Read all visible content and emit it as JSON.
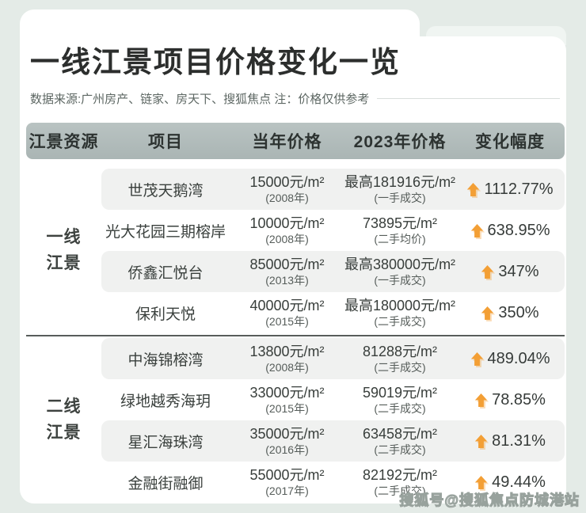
{
  "header": {
    "title": "一线江景项目价格变化一览",
    "subtitle": "数据来源:广州房产、链家、房天下、搜狐焦点  注：价格仅供参考"
  },
  "watermark": "搜狐号@搜狐焦点防城港站",
  "colors": {
    "background": "#e4ebe7",
    "card": "#ffffff",
    "header_band": "#aab5b4",
    "row_stripe": "#f0f1f0",
    "accent_orange": "#f39f35",
    "divider": "#585d5b"
  },
  "table": {
    "columns": [
      "江景资源",
      "项目",
      "当年价格",
      "2023年价格",
      "变化幅度"
    ],
    "groups": [
      {
        "label_lines": [
          "一线",
          "江景"
        ],
        "rows": [
          {
            "project": "世茂天鹅湾",
            "orig_price": "15000元/m²",
            "orig_year": "(2008年)",
            "price_2023": "最高181916元/m²",
            "deal_type": "(一手成交)",
            "change": "1112.77%"
          },
          {
            "project": "光大花园三期榕岸",
            "orig_price": "10000元/m²",
            "orig_year": "(2008年)",
            "price_2023": "73895元/m²",
            "deal_type": "(二手均价)",
            "change": "638.95%"
          },
          {
            "project": "侨鑫汇悦台",
            "orig_price": "85000元/m²",
            "orig_year": "(2013年)",
            "price_2023": "最高380000元/m²",
            "deal_type": "(一手成交)",
            "change": "347%"
          },
          {
            "project": "保利天悦",
            "orig_price": "40000元/m²",
            "orig_year": "(2015年)",
            "price_2023": "最高180000元/m²",
            "deal_type": "(二手成交)",
            "change": "350%"
          }
        ]
      },
      {
        "label_lines": [
          "二线",
          "江景"
        ],
        "rows": [
          {
            "project": "中海锦榕湾",
            "orig_price": "13800元/m²",
            "orig_year": "(2008年)",
            "price_2023": "81288元/m²",
            "deal_type": "(二手成交)",
            "change": "489.04%"
          },
          {
            "project": "绿地越秀海玥",
            "orig_price": "33000元/m²",
            "orig_year": "(2015年)",
            "price_2023": "59019元/m²",
            "deal_type": "(二手成交)",
            "change": "78.85%"
          },
          {
            "project": "星汇海珠湾",
            "orig_price": "35000元/m²",
            "orig_year": "(2016年)",
            "price_2023": "63458元/m²",
            "deal_type": "(二手成交)",
            "change": "81.31%"
          },
          {
            "project": "金融街融御",
            "orig_price": "55000元/m²",
            "orig_year": "(2017年)",
            "price_2023": "82192元/m²",
            "deal_type": "(二手成交)",
            "change": "49.44%"
          }
        ]
      }
    ]
  },
  "chart_data": {
    "type": "table",
    "title": "一线江景项目价格变化一览",
    "subtitle": "数据来源:广州房产、链家、房天下、搜狐焦点  注：价格仅供参考",
    "columns": [
      "江景资源",
      "项目",
      "当年价格(年份)",
      "2023年价格(成交类型)",
      "变化幅度"
    ],
    "rows": [
      [
        "一线江景",
        "世茂天鹅湾",
        "15000元/m² (2008年)",
        "最高181916元/m² (一手成交)",
        "+1112.77%"
      ],
      [
        "一线江景",
        "光大花园三期榕岸",
        "10000元/m² (2008年)",
        "73895元/m² (二手均价)",
        "+638.95%"
      ],
      [
        "一线江景",
        "侨鑫汇悦台",
        "85000元/m² (2013年)",
        "最高380000元/m² (一手成交)",
        "+347%"
      ],
      [
        "一线江景",
        "保利天悦",
        "40000元/m² (2015年)",
        "最高180000元/m² (二手成交)",
        "+350%"
      ],
      [
        "二线江景",
        "中海锦榕湾",
        "13800元/m² (2008年)",
        "81288元/m² (二手成交)",
        "+489.04%"
      ],
      [
        "二线江景",
        "绿地越秀海玥",
        "33000元/m² (2015年)",
        "59019元/m² (二手成交)",
        "+78.85%"
      ],
      [
        "二线江景",
        "星汇海珠湾",
        "35000元/m² (2016年)",
        "63458元/m² (二手成交)",
        "+81.31%"
      ],
      [
        "二线江景",
        "金融街融御",
        "55000元/m² (2017年)",
        "82192元/m² (二手成交)",
        "+49.44%"
      ]
    ]
  }
}
